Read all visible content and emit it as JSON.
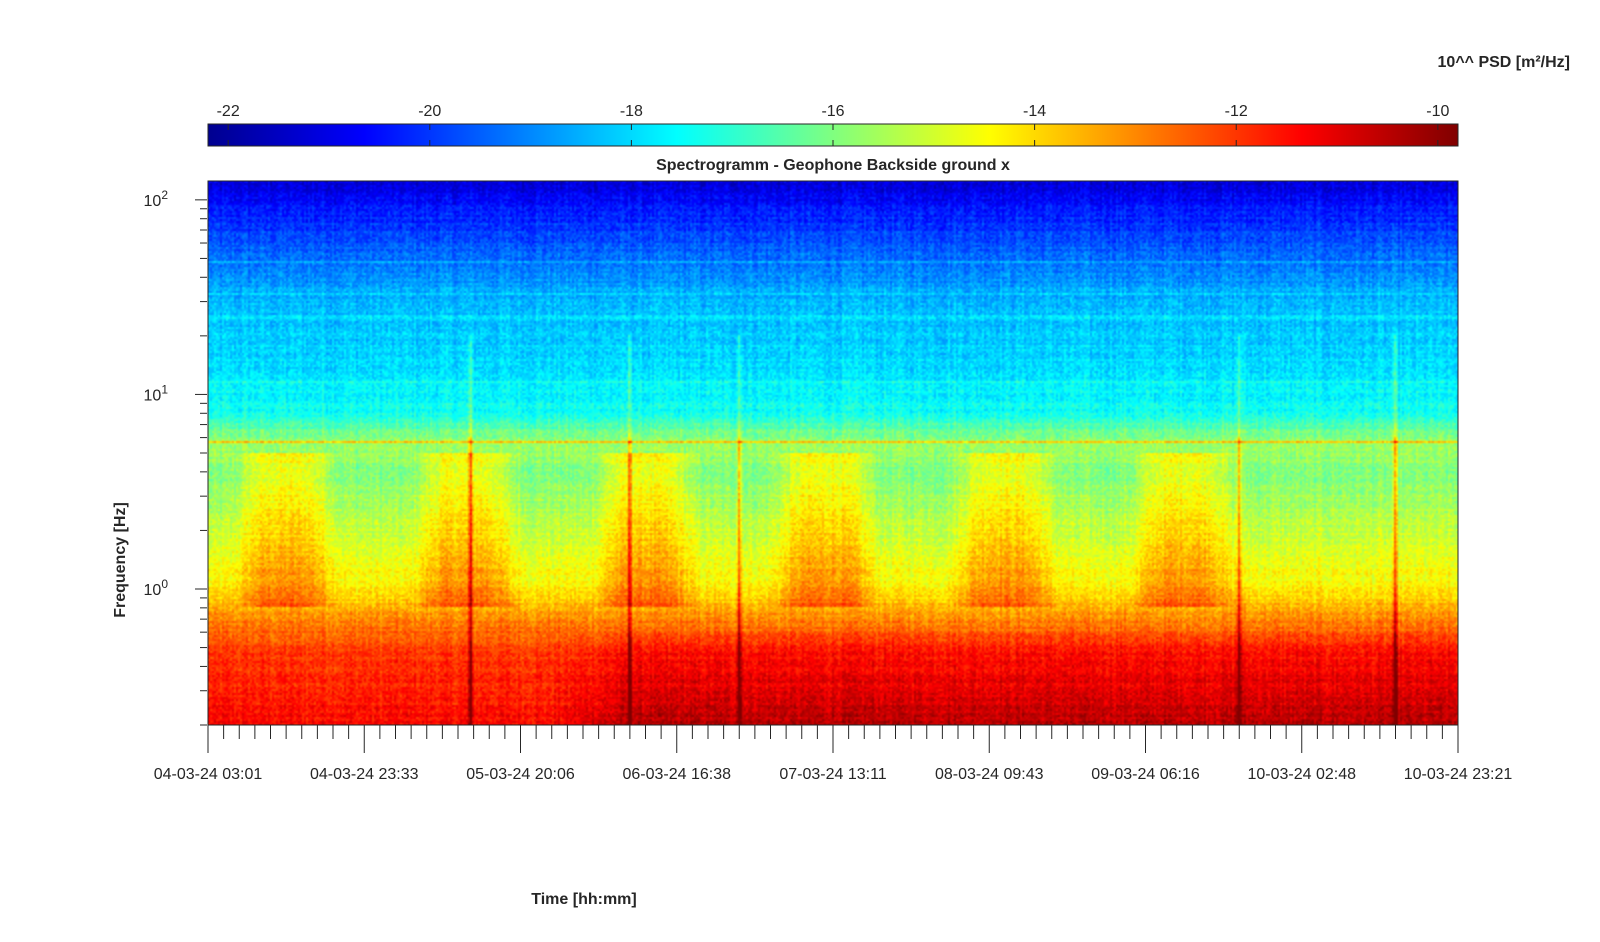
{
  "chart_data": {
    "type": "heatmap",
    "title": "Spectrogramm - Geophone Backside ground x",
    "xlabel": "Time [hh:mm]",
    "ylabel": "Frequency [Hz]",
    "colorbar_label": "10^^ PSD [m²/Hz]",
    "x_tick_labels": [
      "04-03-24 03:01",
      "04-03-24 23:33",
      "05-03-24 20:06",
      "06-03-24 16:38",
      "07-03-24 13:11",
      "08-03-24 09:43",
      "09-03-24 06:16",
      "10-03-24 02:48",
      "10-03-24 23:21"
    ],
    "y_scale": "log",
    "y_tick_exponents": [
      0,
      1,
      2
    ],
    "y_tick_base": "10",
    "ylim": [
      0.2,
      125
    ],
    "colorbar_ticks": [
      "-22",
      "-20",
      "-18",
      "-16",
      "-14",
      "-12",
      "-10"
    ],
    "colorbar_values": [
      -22,
      -20,
      -18,
      -16,
      -14,
      -12,
      -10
    ],
    "clim": [
      -22.2,
      -9.8
    ],
    "colormap": "jet",
    "minor_x_ticks_per_interval": 9,
    "frequency_profile": [
      {
        "hz": 120,
        "log_psd": -21.0
      },
      {
        "hz": 80,
        "log_psd": -20.2
      },
      {
        "hz": 50,
        "log_psd": -19.3
      },
      {
        "hz": 30,
        "log_psd": -18.4
      },
      {
        "hz": 15,
        "log_psd": -18.0
      },
      {
        "hz": 8,
        "log_psd": -17.4
      },
      {
        "hz": 5.7,
        "log_psd": -15.6
      },
      {
        "hz": 4,
        "log_psd": -16.0
      },
      {
        "hz": 2,
        "log_psd": -15.2
      },
      {
        "hz": 1.0,
        "log_psd": -14.3
      },
      {
        "hz": 0.7,
        "log_psd": -13.0
      },
      {
        "hz": 0.5,
        "log_psd": -12.0
      },
      {
        "hz": 0.3,
        "log_psd": -11.6
      },
      {
        "hz": 0.2,
        "log_psd": -11.3
      }
    ],
    "tonal_lines_hz": [
      5.7,
      11.5,
      25,
      33,
      48
    ],
    "low_freq_intensification": {
      "start_day": 2.2,
      "log_psd_peak": -10.5,
      "hz_range": [
        0.2,
        0.6
      ]
    },
    "activity_bursts_days": [
      0.5,
      1.65,
      2.8,
      3.95,
      5.1,
      6.25
    ],
    "transient_spikes_days": [
      1.68,
      2.7,
      3.4,
      6.6,
      7.6
    ],
    "time_range_days": [
      0,
      8
    ]
  }
}
